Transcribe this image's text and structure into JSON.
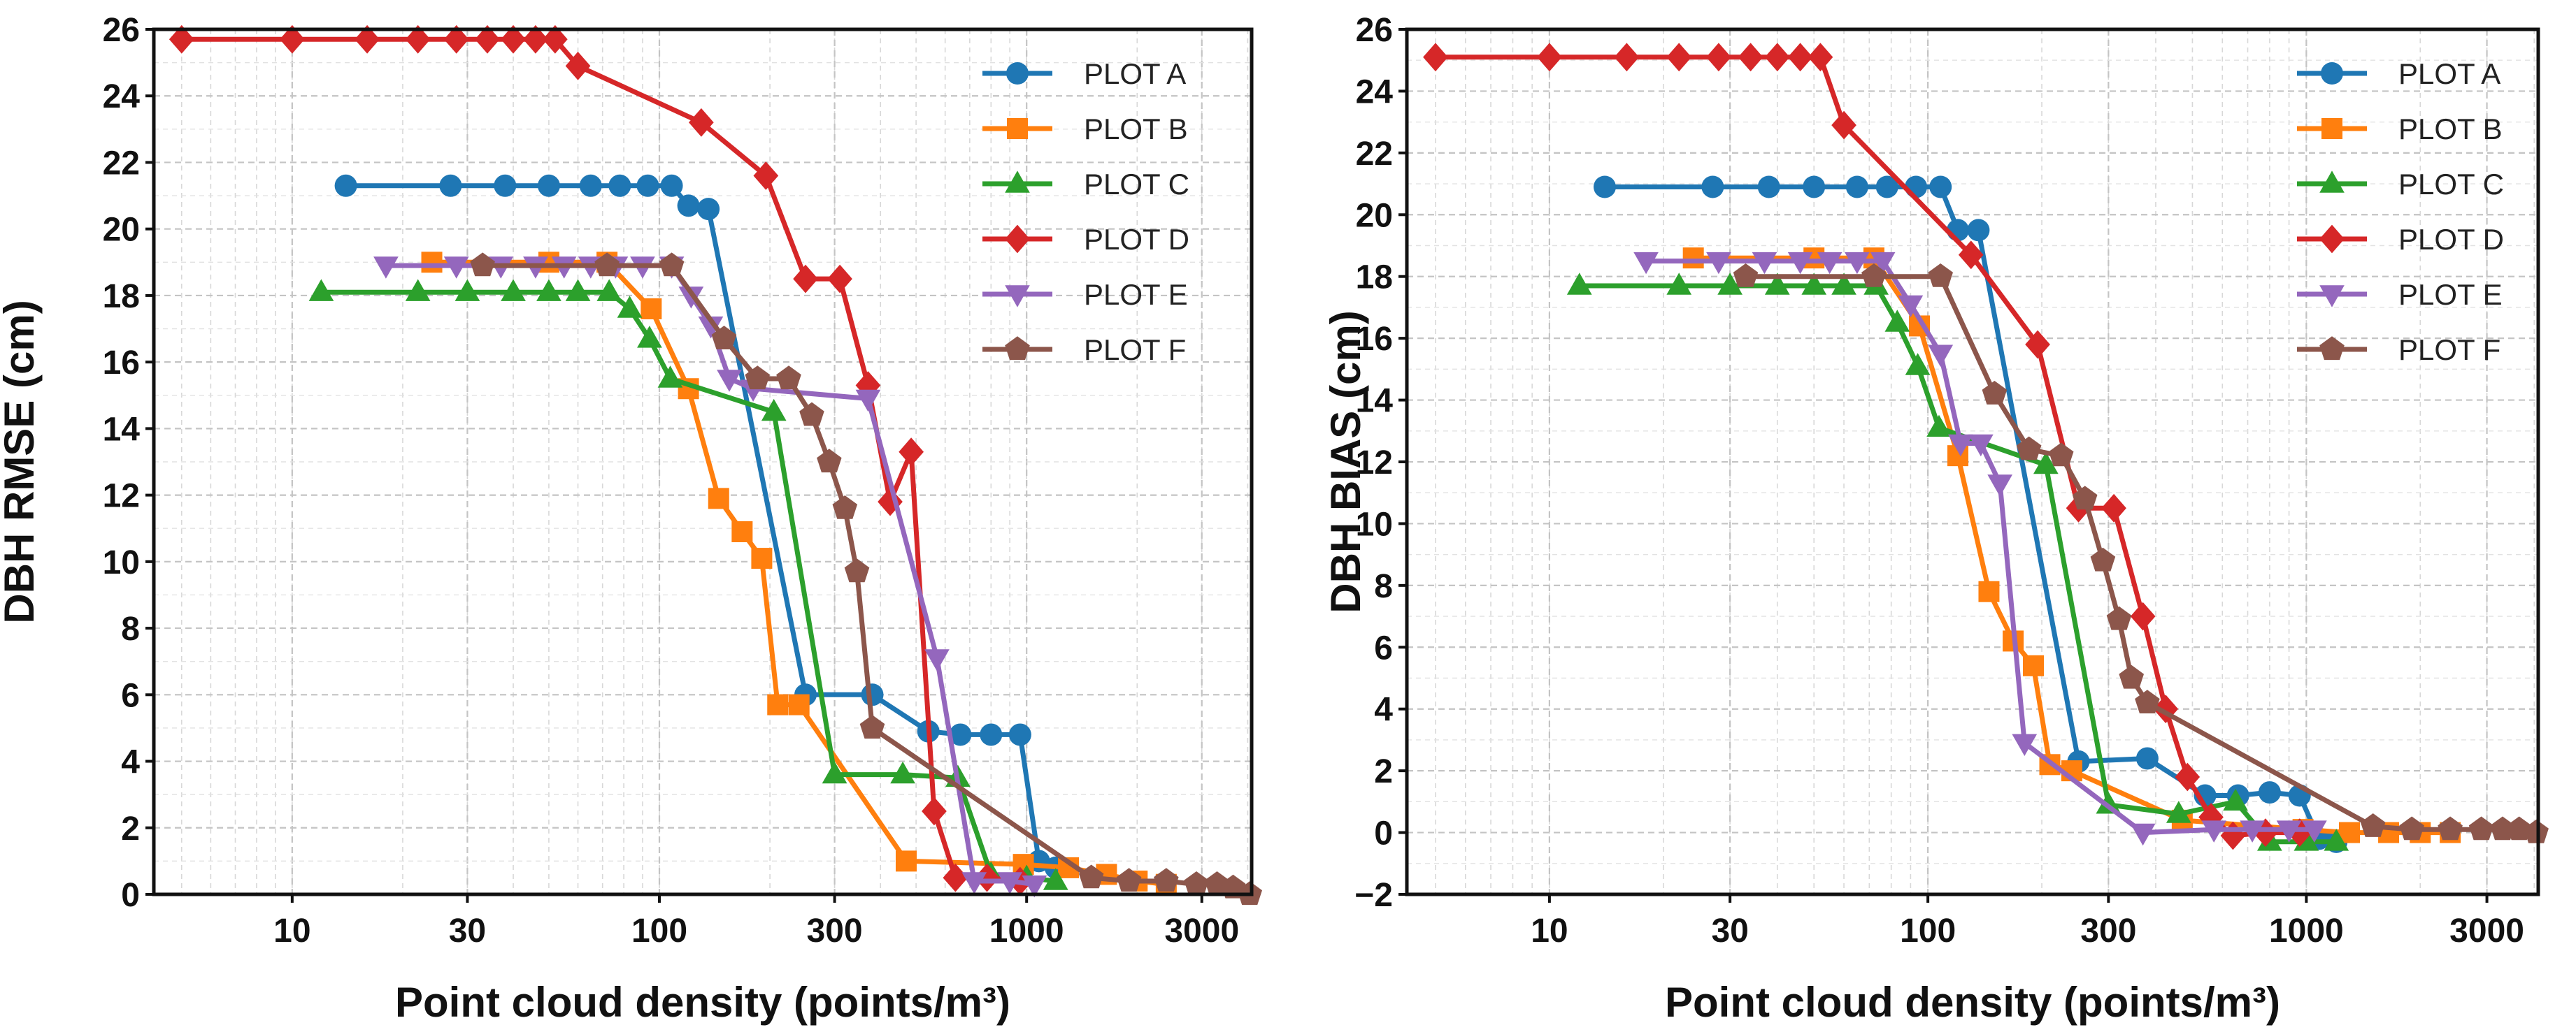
{
  "chart_data": [
    {
      "type": "line",
      "title": "",
      "xlabel": "Point cloud density (points/m³)",
      "ylabel": "DBH RMSE (cm)",
      "xscale": "log",
      "xlim": [
        4.2,
        4100
      ],
      "ylim": [
        0,
        26
      ],
      "xticks": [
        10,
        30,
        100,
        300,
        1000,
        3000
      ],
      "xtick_labels": [
        "10",
        "30",
        "100",
        "300",
        "1000",
        "3000"
      ],
      "yticks": [
        0,
        2,
        4,
        6,
        8,
        10,
        12,
        14,
        16,
        18,
        20,
        22,
        24,
        26
      ],
      "ytick_labels": [
        "0",
        "2",
        "4",
        "6",
        "8",
        "10",
        "12",
        "14",
        "16",
        "18",
        "20",
        "22",
        "24",
        "26"
      ],
      "grid": true,
      "legend": "top-right",
      "series": [
        {
          "name": "PLOT A",
          "color": "#1f77b4",
          "marker": "circle",
          "x": [
            14,
            27,
            38,
            50,
            65,
            78,
            93,
            108,
            120,
            136,
            250,
            380,
            540,
            660,
            800,
            960,
            1080,
            1200
          ],
          "y": [
            21.3,
            21.3,
            21.3,
            21.3,
            21.3,
            21.3,
            21.3,
            21.3,
            20.7,
            20.6,
            6.0,
            6.0,
            4.9,
            4.8,
            4.8,
            4.8,
            1.0,
            0.8
          ]
        },
        {
          "name": "PLOT B",
          "color": "#ff7f0e",
          "marker": "square",
          "x": [
            24,
            50,
            72,
            95,
            120,
            145,
            168,
            190,
            210,
            240,
            470,
            980,
            1300,
            1650,
            2000,
            2400
          ],
          "y": [
            19.0,
            19.0,
            19.0,
            17.6,
            15.2,
            11.9,
            10.9,
            10.1,
            5.7,
            5.7,
            1.0,
            0.9,
            0.8,
            0.6,
            0.4,
            0.3
          ]
        },
        {
          "name": "PLOT C",
          "color": "#2ca02c",
          "marker": "triangle-up",
          "x": [
            12,
            22,
            30,
            40,
            50,
            60,
            73,
            83,
            94,
            107,
            205,
            300,
            460,
            650,
            800,
            1000,
            1200
          ],
          "y": [
            18.1,
            18.1,
            18.1,
            18.1,
            18.1,
            18.1,
            18.1,
            17.6,
            16.7,
            15.5,
            14.5,
            3.6,
            3.6,
            3.5,
            0.6,
            0.5,
            0.4
          ]
        },
        {
          "name": "PLOT D",
          "color": "#d62728",
          "marker": "diamond",
          "x": [
            5,
            10,
            16,
            22,
            28,
            34,
            40,
            46,
            52,
            60,
            130,
            195,
            250,
            310,
            370,
            425,
            485,
            560,
            640,
            780,
            960
          ],
          "y": [
            25.7,
            25.7,
            25.7,
            25.7,
            25.7,
            25.7,
            25.7,
            25.7,
            25.7,
            24.9,
            23.2,
            21.6,
            18.5,
            18.5,
            15.3,
            11.8,
            13.3,
            2.5,
            0.5,
            0.5,
            0.4
          ]
        },
        {
          "name": "PLOT E",
          "color": "#9467bd",
          "marker": "triangle-down",
          "x": [
            18,
            28,
            37,
            46,
            55,
            65,
            76,
            90,
            108,
            122,
            138,
            155,
            180,
            370,
            570,
            720,
            900,
            1050
          ],
          "y": [
            18.9,
            18.9,
            18.9,
            18.9,
            18.9,
            18.9,
            18.9,
            18.9,
            18.9,
            18.0,
            17.1,
            15.5,
            15.2,
            14.9,
            7.1,
            0.4,
            0.4,
            0.3
          ]
        },
        {
          "name": "PLOT F",
          "color": "#8c564b",
          "marker": "pentagon",
          "x": [
            33,
            72,
            108,
            150,
            185,
            225,
            260,
            290,
            320,
            345,
            380,
            1500,
            1900,
            2400,
            2900,
            3300,
            3650,
            4050
          ],
          "y": [
            18.9,
            18.9,
            18.9,
            16.7,
            15.5,
            15.5,
            14.4,
            13.0,
            11.6,
            9.7,
            5.0,
            0.5,
            0.4,
            0.4,
            0.3,
            0.3,
            0.2,
            0.0
          ]
        }
      ]
    },
    {
      "type": "line",
      "title": "",
      "xlabel": "Point cloud density (points/m³)",
      "ylabel": "DBH BIAS (cm)",
      "xscale": "log",
      "xlim": [
        4.2,
        4100
      ],
      "ylim": [
        -2,
        26
      ],
      "xticks": [
        10,
        30,
        100,
        300,
        1000,
        3000
      ],
      "xtick_labels": [
        "10",
        "30",
        "100",
        "300",
        "1000",
        "3000"
      ],
      "yticks": [
        -2,
        0,
        2,
        4,
        6,
        8,
        10,
        12,
        14,
        16,
        18,
        20,
        22,
        24,
        26
      ],
      "ytick_labels": [
        "−2",
        "0",
        "2",
        "4",
        "6",
        "8",
        "10",
        "12",
        "14",
        "16",
        "18",
        "20",
        "22",
        "24",
        "26"
      ],
      "grid": true,
      "legend": "top-right",
      "series": [
        {
          "name": "PLOT A",
          "color": "#1f77b4",
          "marker": "circle",
          "x": [
            14,
            27,
            38,
            50,
            65,
            78,
            93,
            108,
            120,
            136,
            250,
            380,
            540,
            660,
            800,
            960,
            1080,
            1200
          ],
          "y": [
            20.9,
            20.9,
            20.9,
            20.9,
            20.9,
            20.9,
            20.9,
            20.9,
            19.5,
            19.5,
            2.3,
            2.4,
            1.2,
            1.2,
            1.3,
            1.2,
            -0.2,
            -0.3
          ]
        },
        {
          "name": "PLOT B",
          "color": "#ff7f0e",
          "marker": "square",
          "x": [
            24,
            50,
            72,
            95,
            120,
            145,
            168,
            190,
            210,
            240,
            470,
            980,
            1300,
            1650,
            2000,
            2400
          ],
          "y": [
            18.6,
            18.6,
            18.6,
            16.4,
            12.2,
            7.8,
            6.2,
            5.4,
            2.2,
            2.0,
            0.4,
            0.1,
            0.0,
            0.0,
            0.0,
            0.0
          ]
        },
        {
          "name": "PLOT C",
          "color": "#2ca02c",
          "marker": "triangle-up",
          "x": [
            12,
            22,
            30,
            40,
            50,
            60,
            73,
            83,
            94,
            107,
            205,
            300,
            460,
            650,
            800,
            1000,
            1200
          ],
          "y": [
            17.7,
            17.7,
            17.7,
            17.7,
            17.7,
            17.7,
            17.7,
            16.5,
            15.1,
            13.1,
            11.9,
            0.9,
            0.6,
            1.0,
            -0.3,
            -0.3,
            -0.3
          ]
        },
        {
          "name": "PLOT D",
          "color": "#d62728",
          "marker": "diamond",
          "x": [
            5,
            10,
            16,
            22,
            28,
            34,
            40,
            46,
            52,
            60,
            130,
            195,
            250,
            310,
            370,
            425,
            485,
            560,
            640,
            780,
            960
          ],
          "y": [
            25.1,
            25.1,
            25.1,
            25.1,
            25.1,
            25.1,
            25.1,
            25.1,
            25.1,
            22.9,
            18.7,
            15.8,
            10.5,
            10.5,
            7.0,
            4.0,
            1.8,
            0.5,
            -0.1,
            0.0,
            0.0
          ]
        },
        {
          "name": "PLOT E",
          "color": "#9467bd",
          "marker": "triangle-down",
          "x": [
            18,
            28,
            37,
            46,
            55,
            65,
            76,
            90,
            108,
            122,
            138,
            155,
            180,
            370,
            570,
            720,
            900,
            1050
          ],
          "y": [
            18.5,
            18.5,
            18.5,
            18.5,
            18.5,
            18.5,
            18.5,
            17.1,
            15.5,
            12.6,
            12.6,
            11.3,
            2.9,
            0.0,
            0.1,
            0.1,
            0.1,
            0.1
          ]
        },
        {
          "name": "PLOT F",
          "color": "#8c564b",
          "marker": "pentagon",
          "x": [
            33,
            72,
            108,
            150,
            185,
            225,
            260,
            290,
            320,
            345,
            380,
            1500,
            1900,
            2400,
            2900,
            3300,
            3650,
            4050
          ],
          "y": [
            18.0,
            18.0,
            18.0,
            14.2,
            12.4,
            12.2,
            10.8,
            8.8,
            6.9,
            5.0,
            4.2,
            0.2,
            0.1,
            0.1,
            0.1,
            0.1,
            0.1,
            0.0
          ]
        }
      ]
    }
  ]
}
